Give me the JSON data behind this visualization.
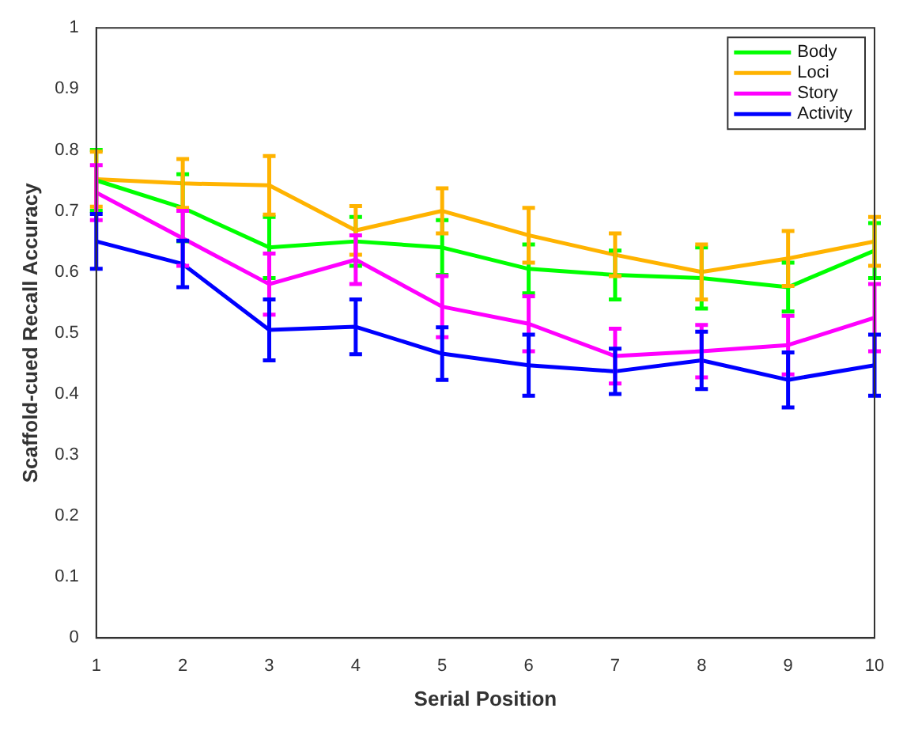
{
  "chart_data": {
    "type": "line",
    "xlabel": "Serial Position",
    "ylabel": "Scaffold-cued Recall Accuracy",
    "x": [
      1,
      2,
      3,
      4,
      5,
      6,
      7,
      8,
      9,
      10
    ],
    "xlim": [
      1,
      10
    ],
    "xticks": [
      1,
      2,
      3,
      4,
      5,
      6,
      7,
      8,
      9,
      10
    ],
    "ylim": [
      0,
      1
    ],
    "yticks": [
      0,
      0.1,
      0.2,
      0.3,
      0.4,
      0.5,
      0.6,
      0.7,
      0.8,
      0.9,
      1
    ],
    "grid": false,
    "legend": "top right",
    "marker": "none",
    "line_style": "solid",
    "series": [
      {
        "name": "Body",
        "color": "#00ff00",
        "values": [
          0.75,
          0.705,
          0.64,
          0.65,
          0.64,
          0.605,
          0.595,
          0.59,
          0.575,
          0.635
        ],
        "errors": [
          0.05,
          0.055,
          0.05,
          0.04,
          0.045,
          0.04,
          0.04,
          0.05,
          0.04,
          0.045
        ]
      },
      {
        "name": "Loci",
        "color": "#ffb300",
        "values": [
          0.752,
          0.745,
          0.742,
          0.668,
          0.7,
          0.66,
          0.628,
          0.6,
          0.622,
          0.65
        ],
        "errors": [
          0.045,
          0.04,
          0.048,
          0.04,
          0.037,
          0.045,
          0.035,
          0.045,
          0.045,
          0.04
        ]
      },
      {
        "name": "Story",
        "color": "#ff00ff",
        "values": [
          0.73,
          0.655,
          0.58,
          0.62,
          0.543,
          0.515,
          0.462,
          0.47,
          0.48,
          0.525
        ],
        "errors": [
          0.045,
          0.045,
          0.05,
          0.04,
          0.05,
          0.045,
          0.045,
          0.043,
          0.048,
          0.055
        ]
      },
      {
        "name": "Activity",
        "color": "#0000ff",
        "values": [
          0.65,
          0.613,
          0.505,
          0.51,
          0.466,
          0.447,
          0.437,
          0.455,
          0.423,
          0.447
        ],
        "errors": [
          0.045,
          0.038,
          0.05,
          0.045,
          0.043,
          0.05,
          0.037,
          0.047,
          0.045,
          0.05
        ]
      }
    ]
  }
}
